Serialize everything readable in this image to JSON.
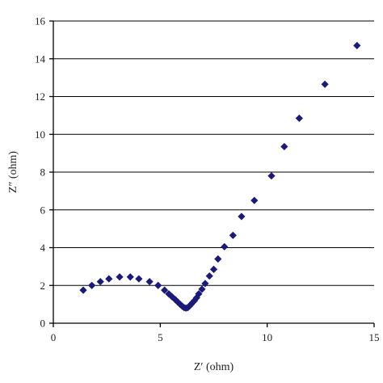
{
  "chart_data": {
    "type": "scatter",
    "title": "",
    "xlabel": "Z′ (ohm)",
    "ylabel": "Z″ (ohm)",
    "xlim": [
      0,
      15
    ],
    "ylim": [
      0,
      16
    ],
    "x_ticks": [
      0,
      5,
      10,
      15
    ],
    "y_ticks": [
      0,
      2,
      4,
      6,
      8,
      10,
      12,
      14,
      16
    ],
    "x_tick_labels": [
      "0",
      "5",
      "10",
      "15"
    ],
    "y_tick_labels": [
      "0",
      "2",
      "4",
      "6",
      "8",
      "10",
      "12",
      "14",
      "16"
    ],
    "grid": "horizontal",
    "marker": "diamond",
    "marker_color": "#1a1a7a",
    "series": [
      {
        "x": [
          1.4,
          1.8,
          2.2,
          2.6,
          3.1,
          3.6,
          4.0,
          4.5,
          4.9,
          5.2,
          5.4,
          5.55,
          5.7,
          5.82,
          5.93,
          6.03,
          6.12,
          6.2,
          6.28,
          6.36,
          6.44,
          6.52,
          6.6,
          6.7,
          6.8,
          6.95,
          7.1,
          7.3,
          7.5,
          7.7,
          8.0,
          8.4,
          8.8,
          9.4,
          10.2,
          10.8,
          11.5,
          12.7,
          14.2
        ],
        "y": [
          1.75,
          2.0,
          2.2,
          2.35,
          2.45,
          2.45,
          2.35,
          2.2,
          2.0,
          1.75,
          1.55,
          1.4,
          1.25,
          1.12,
          1.0,
          0.9,
          0.82,
          0.8,
          0.82,
          0.9,
          1.0,
          1.1,
          1.2,
          1.35,
          1.55,
          1.8,
          2.1,
          2.5,
          2.85,
          3.4,
          4.05,
          4.65,
          5.65,
          6.5,
          7.8,
          9.35,
          10.85,
          12.65,
          14.7
        ]
      }
    ]
  }
}
